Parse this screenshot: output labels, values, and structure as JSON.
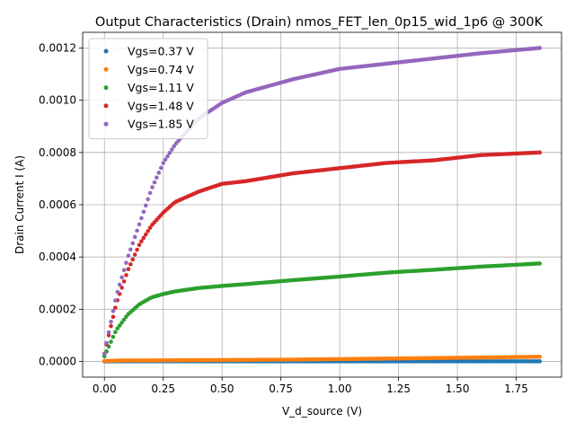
{
  "chart_data": {
    "type": "scatter",
    "title": "Output Characteristics (Drain) nmos_FET_len_0p15_wid_1p6 @ 300K",
    "xlabel": "V_d_source (V)",
    "ylabel": "Drain Current I (A)",
    "xlim": [
      -0.0925,
      1.9425
    ],
    "ylim": [
      -6e-05,
      0.00126
    ],
    "xticks": [
      0.0,
      0.25,
      0.5,
      0.75,
      1.0,
      1.25,
      1.5,
      1.75
    ],
    "xtick_labels": [
      "0.00",
      "0.25",
      "0.50",
      "0.75",
      "1.00",
      "1.25",
      "1.50",
      "1.75"
    ],
    "yticks": [
      0.0,
      0.0002,
      0.0004,
      0.0006,
      0.0008,
      0.001,
      0.0012
    ],
    "ytick_labels": [
      "0.0000",
      "0.0002",
      "0.0004",
      "0.0006",
      "0.0008",
      "0.0010",
      "0.0012"
    ],
    "grid": true,
    "legend_position": "top-left",
    "x_range": [
      0,
      1.85
    ],
    "series": [
      {
        "name": "Vgs=0.37 V",
        "color": "#1f77b4",
        "x": [
          0,
          0.05,
          0.1,
          0.2,
          0.4,
          0.6,
          0.8,
          1.0,
          1.2,
          1.4,
          1.6,
          1.85
        ],
        "y": [
          2e-07,
          4e-07,
          5e-07,
          5e-07,
          5e-07,
          5e-07,
          5e-07,
          5e-07,
          5e-07,
          5e-07,
          5e-07,
          5e-07
        ]
      },
      {
        "name": "Vgs=0.74 V",
        "color": "#ff7f0e",
        "x": [
          0,
          0.05,
          0.1,
          0.2,
          0.4,
          0.6,
          0.8,
          1.0,
          1.2,
          1.4,
          1.6,
          1.85
        ],
        "y": [
          2e-06,
          3e-06,
          4e-06,
          4e-06,
          5e-06,
          6e-06,
          7e-06,
          9e-06,
          1.1e-05,
          1.3e-05,
          1.5e-05,
          1.8e-05
        ]
      },
      {
        "name": "Vgs=1.11 V",
        "color": "#2ca02c",
        "x": [
          0,
          0.05,
          0.1,
          0.15,
          0.2,
          0.25,
          0.3,
          0.4,
          0.5,
          0.6,
          0.8,
          1.0,
          1.2,
          1.4,
          1.6,
          1.85
        ],
        "y": [
          2e-05,
          0.00012,
          0.00018,
          0.00022,
          0.000245,
          0.000258,
          0.000268,
          0.000281,
          0.000289,
          0.000296,
          0.000311,
          0.000325,
          0.00034,
          0.000351,
          0.000363,
          0.000375
        ]
      },
      {
        "name": "Vgs=1.48 V",
        "color": "#d62728",
        "x": [
          0,
          0.05,
          0.1,
          0.15,
          0.2,
          0.25,
          0.3,
          0.4,
          0.5,
          0.6,
          0.8,
          1.0,
          1.2,
          1.4,
          1.6,
          1.85
        ],
        "y": [
          3e-05,
          0.00022,
          0.00035,
          0.00045,
          0.00052,
          0.00057,
          0.00061,
          0.00065,
          0.00068,
          0.00069,
          0.00072,
          0.00074,
          0.00076,
          0.00077,
          0.00079,
          0.0008
        ]
      },
      {
        "name": "Vgs=1.85 V",
        "color": "#9467bd",
        "x": [
          0,
          0.05,
          0.1,
          0.15,
          0.2,
          0.25,
          0.3,
          0.35,
          0.4,
          0.5,
          0.6,
          0.8,
          1.0,
          1.2,
          1.4,
          1.6,
          1.85
        ],
        "y": [
          3e-05,
          0.00025,
          0.0004,
          0.00053,
          0.00066,
          0.00076,
          0.00083,
          0.00088,
          0.00093,
          0.00099,
          0.00103,
          0.00108,
          0.00112,
          0.00114,
          0.00116,
          0.00118,
          0.0012
        ]
      }
    ]
  }
}
